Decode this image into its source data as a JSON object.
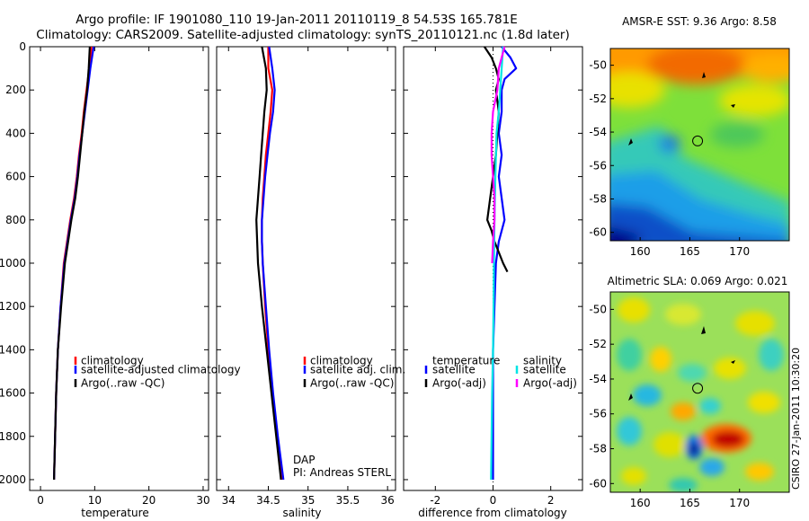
{
  "header": {
    "line1": "Argo profile: IF 1901080_110 19-Jan-2011 20110119_8 54.53S 165.781E",
    "line2": "Climatology: CARS2009. Satellite-adjusted climatology: synTS_20110121.nc (1.8d later)"
  },
  "side_label": "CSIRO 27-Jan-2011 10:30:20",
  "colors": {
    "clim": "#ff0000",
    "sat": "#0000ff",
    "argo": "#000000",
    "sal_sat": "#00e5e5",
    "sal_argo": "#ff00ff"
  },
  "chart_data": [
    {
      "id": "temperature",
      "type": "line",
      "xlabel": "temperature",
      "xlim": [
        -2,
        31
      ],
      "ylim": [
        0,
        2050
      ],
      "xticks": [
        "0",
        "10",
        "20",
        "30"
      ],
      "yticks": [
        "0",
        "200",
        "400",
        "600",
        "800",
        "1000",
        "1200",
        "1400",
        "1600",
        "1800",
        "2000"
      ],
      "legend": [
        "climatology",
        "satellite-adjusted climatology",
        "Argo(..raw -QC)"
      ],
      "series": [
        {
          "name": "climatology",
          "color": "#ff0000",
          "depth": [
            0,
            100,
            200,
            300,
            400,
            500,
            600,
            700,
            800,
            900,
            1000,
            1200,
            1400,
            1600,
            1800,
            2000
          ],
          "values": [
            9.4,
            9.0,
            8.5,
            8.0,
            7.6,
            7.1,
            6.7,
            6.2,
            5.5,
            4.9,
            4.3,
            3.7,
            3.2,
            2.9,
            2.7,
            2.5
          ]
        },
        {
          "name": "satellite-adjusted climatology",
          "color": "#0000ff",
          "depth": [
            0,
            100,
            200,
            300,
            400,
            500,
            600,
            700,
            800,
            900,
            1000,
            1200,
            1400,
            1600,
            1800,
            2000
          ],
          "values": [
            9.8,
            9.2,
            8.7,
            8.2,
            7.7,
            7.2,
            6.8,
            6.3,
            5.6,
            5.0,
            4.4,
            3.7,
            3.2,
            2.9,
            2.7,
            2.5
          ]
        },
        {
          "name": "Argo(..raw -QC)",
          "color": "#000000",
          "depth": [
            0,
            100,
            200,
            300,
            400,
            500,
            600,
            700,
            800,
            900,
            1000,
            1200,
            1400,
            1600,
            1800,
            2000
          ],
          "values": [
            9.1,
            8.9,
            8.6,
            8.1,
            7.7,
            7.3,
            6.9,
            6.4,
            5.7,
            5.1,
            4.5,
            3.8,
            3.2,
            2.9,
            2.7,
            2.5
          ]
        }
      ]
    },
    {
      "id": "salinity",
      "type": "line",
      "xlabel": "salinity",
      "xlim": [
        33.85,
        36.1
      ],
      "ylim": [
        0,
        2050
      ],
      "xticks": [
        "34",
        "34.5",
        "35",
        "35.5",
        "36"
      ],
      "legend": [
        "climatology",
        "satellite adj. clim.",
        "Argo(..raw -QC)"
      ],
      "annotation": [
        "DAP",
        "PI: Andreas STERL"
      ],
      "series": [
        {
          "name": "climatology",
          "color": "#ff0000",
          "depth": [
            0,
            100,
            200,
            300,
            400,
            500,
            600,
            700,
            800,
            900,
            1000,
            1200,
            1400,
            1600,
            1800,
            2000
          ],
          "values": [
            34.5,
            34.5,
            34.55,
            34.53,
            34.5,
            34.47,
            34.45,
            34.43,
            34.42,
            34.42,
            34.43,
            34.46,
            34.5,
            34.55,
            34.61,
            34.68
          ]
        },
        {
          "name": "satellite adj. clim.",
          "color": "#0000ff",
          "depth": [
            0,
            100,
            200,
            300,
            400,
            500,
            600,
            700,
            800,
            900,
            1000,
            1200,
            1400,
            1600,
            1800,
            2000
          ],
          "values": [
            34.51,
            34.55,
            34.58,
            34.56,
            34.52,
            34.49,
            34.46,
            34.44,
            34.42,
            34.42,
            34.43,
            34.47,
            34.51,
            34.56,
            34.62,
            34.69
          ]
        },
        {
          "name": "Argo(..raw -QC)",
          "color": "#000000",
          "depth": [
            0,
            100,
            200,
            300,
            400,
            500,
            600,
            700,
            800,
            900,
            1000,
            1200,
            1400,
            1600,
            1800,
            2000
          ],
          "values": [
            34.42,
            34.47,
            34.48,
            34.45,
            34.43,
            34.41,
            34.39,
            34.37,
            34.35,
            34.36,
            34.37,
            34.42,
            34.48,
            34.54,
            34.6,
            34.66
          ]
        }
      ]
    },
    {
      "id": "difference",
      "type": "line",
      "xlabel": "difference from climatology",
      "xlim": [
        -3.1,
        3.1
      ],
      "ylim": [
        0,
        2050
      ],
      "xticks": [
        "-2",
        "0",
        "2"
      ],
      "legend_temperature": {
        "title": "temperature",
        "items": [
          "satellite",
          "Argo(-adj)"
        ]
      },
      "legend_salinity": {
        "title": "salinity",
        "items": [
          "satellite",
          "Argo(-adj)"
        ]
      },
      "series": [
        {
          "name": "temperature satellite",
          "color": "#0000ff",
          "depth": [
            0,
            50,
            100,
            150,
            200,
            300,
            400,
            500,
            600,
            700,
            800,
            900,
            1000,
            1200,
            1400,
            1600,
            1800,
            2000
          ],
          "values": [
            0.3,
            0.6,
            0.8,
            0.4,
            0.3,
            0.3,
            0.2,
            0.3,
            0.2,
            0.3,
            0.4,
            0.2,
            0.1,
            0.05,
            0.0,
            0.0,
            0.0,
            0.0
          ]
        },
        {
          "name": "temperature Argo(-adj)",
          "color": "#000000",
          "depth": [
            0,
            50,
            100,
            150,
            200,
            300,
            400,
            500,
            600,
            700,
            800,
            850,
            900,
            950,
            1000,
            1040
          ],
          "values": [
            -0.3,
            -0.05,
            0.1,
            0.2,
            0.1,
            0.2,
            0.15,
            0.1,
            0.0,
            -0.1,
            -0.2,
            -0.05,
            0.05,
            0.2,
            0.35,
            0.5
          ]
        },
        {
          "name": "salinity satellite",
          "color": "#00e5e5",
          "depth": [
            0,
            100,
            200,
            300,
            400,
            600,
            800,
            1000,
            1200,
            1400,
            1600,
            1800,
            2000
          ],
          "values": [
            0.35,
            0.3,
            0.25,
            0.2,
            0.12,
            0.08,
            0.05,
            0.03,
            0.02,
            0.0,
            -0.03,
            -0.05,
            -0.07
          ]
        },
        {
          "name": "salinity Argo(-adj)",
          "color": "#ff00ff",
          "depth": [
            0,
            100,
            200,
            300,
            400,
            500,
            600,
            700,
            800,
            900,
            1000
          ],
          "values": [
            0.4,
            0.2,
            0.15,
            0.0,
            -0.05,
            -0.05,
            0.0,
            0.05,
            0.05,
            0.0,
            -0.03
          ]
        }
      ]
    },
    {
      "id": "amsre_map",
      "type": "heatmap",
      "title": "AMSR-E SST: 9.36 Argo: 8.58",
      "xticks": [
        "160",
        "165",
        "170"
      ],
      "yticks": [
        "-50",
        "-52",
        "-54",
        "-56",
        "-58",
        "-60"
      ],
      "xlim": [
        157,
        175
      ],
      "ylim": [
        -60.5,
        -49
      ],
      "marker": {
        "lon": 165.78,
        "lat": -54.53
      }
    },
    {
      "id": "sla_map",
      "type": "heatmap",
      "title": "Altimetric SLA: 0.069 Argo: 0.021",
      "xticks": [
        "160",
        "165",
        "170"
      ],
      "yticks": [
        "-50",
        "-52",
        "-54",
        "-56",
        "-58",
        "-60"
      ],
      "xlim": [
        157,
        175
      ],
      "ylim": [
        -60.5,
        -49
      ],
      "marker": {
        "lon": 165.78,
        "lat": -54.53
      }
    }
  ]
}
